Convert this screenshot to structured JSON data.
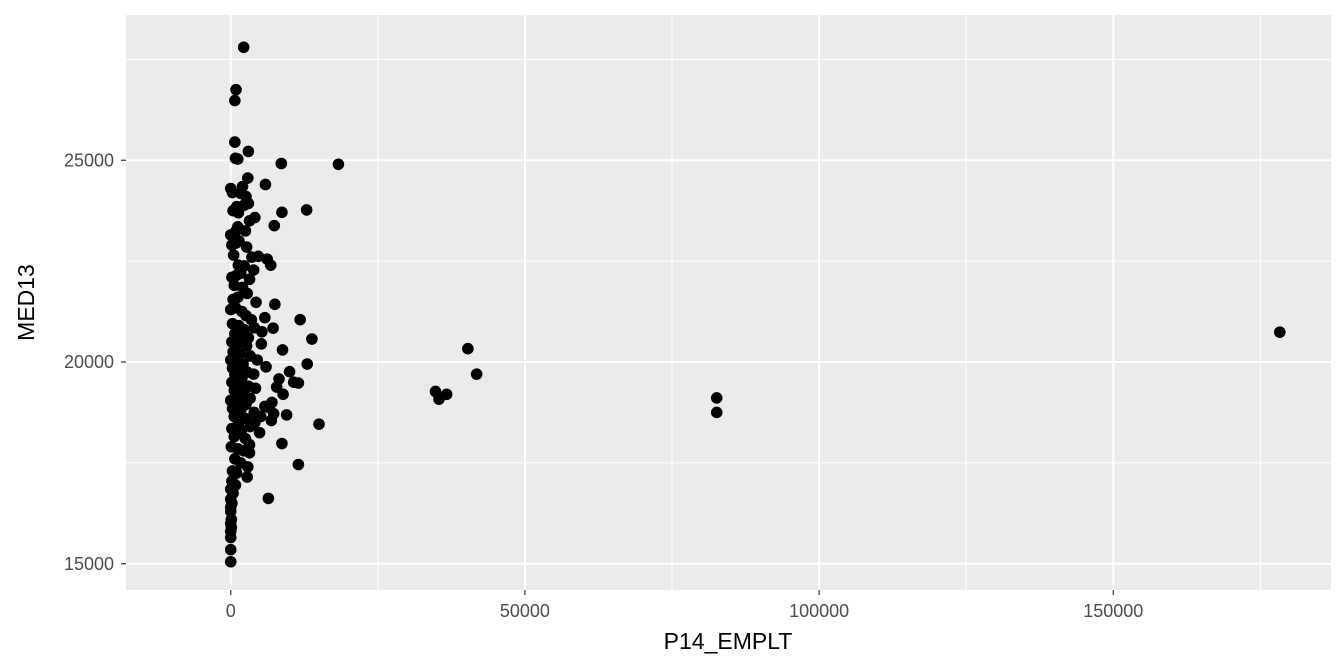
{
  "chart_data": {
    "type": "scatter",
    "title": "",
    "xlabel": "P14_EMPLT",
    "ylabel": "MED13",
    "xlim": [
      -17800,
      187000
    ],
    "ylim": [
      14350,
      28600
    ],
    "x_ticks": [
      0,
      50000,
      100000,
      150000
    ],
    "x_tick_labels": [
      "0",
      "50000",
      "100000",
      "150000"
    ],
    "x_minor_ticks": [
      25000,
      75000,
      125000,
      175000
    ],
    "y_ticks": [
      15000,
      20000,
      25000
    ],
    "y_tick_labels": [
      "15000",
      "20000",
      "25000"
    ],
    "y_minor_ticks": [
      17500,
      22500,
      27500
    ],
    "grid": true,
    "colors": {
      "panel": "#ebebeb",
      "grid": "#ffffff",
      "point": "#000000",
      "tick_label": "#4d4d4d",
      "axis_title": "#000000"
    },
    "series": [
      {
        "points": [
          [
            2200,
            27800
          ],
          [
            900,
            26750
          ],
          [
            700,
            26480
          ],
          [
            700,
            25450
          ],
          [
            800,
            25050
          ],
          [
            1200,
            25030
          ],
          [
            3000,
            25220
          ],
          [
            8600,
            24920
          ],
          [
            18300,
            24900
          ],
          [
            0,
            24300
          ],
          [
            300,
            24200
          ],
          [
            2000,
            24350
          ],
          [
            2600,
            24100
          ],
          [
            1700,
            24180
          ],
          [
            2900,
            24560
          ],
          [
            5900,
            24400
          ],
          [
            1000,
            23850
          ],
          [
            2200,
            23880
          ],
          [
            3000,
            23930
          ],
          [
            400,
            23750
          ],
          [
            1300,
            23700
          ],
          [
            4100,
            23580
          ],
          [
            3200,
            23500
          ],
          [
            8700,
            23710
          ],
          [
            12900,
            23770
          ],
          [
            7400,
            23380
          ],
          [
            1200,
            23350
          ],
          [
            0,
            23150
          ],
          [
            900,
            23250
          ],
          [
            2500,
            23250
          ],
          [
            200,
            22900
          ],
          [
            900,
            22950
          ],
          [
            1400,
            23000
          ],
          [
            2700,
            22850
          ],
          [
            3600,
            22600
          ],
          [
            500,
            22650
          ],
          [
            4700,
            22620
          ],
          [
            6200,
            22550
          ],
          [
            6800,
            22400
          ],
          [
            1300,
            22400
          ],
          [
            2300,
            22380
          ],
          [
            3900,
            22280
          ],
          [
            200,
            22100
          ],
          [
            1000,
            22150
          ],
          [
            1700,
            22200
          ],
          [
            3200,
            22050
          ],
          [
            600,
            21900
          ],
          [
            2000,
            21850
          ],
          [
            2800,
            21700
          ],
          [
            400,
            21550
          ],
          [
            1200,
            21600
          ],
          [
            4300,
            21480
          ],
          [
            7500,
            21430
          ],
          [
            0,
            21300
          ],
          [
            800,
            21350
          ],
          [
            1900,
            21250
          ],
          [
            2600,
            21150
          ],
          [
            3500,
            21050
          ],
          [
            5800,
            21100
          ],
          [
            11800,
            21050
          ],
          [
            300,
            20950
          ],
          [
            1400,
            20900
          ],
          [
            2300,
            20800
          ],
          [
            4000,
            20850
          ],
          [
            7200,
            20840
          ],
          [
            5300,
            20750
          ],
          [
            13800,
            20570
          ],
          [
            700,
            20700
          ],
          [
            1800,
            20650
          ],
          [
            3000,
            20600
          ],
          [
            200,
            20500
          ],
          [
            1100,
            20450
          ],
          [
            2700,
            20400
          ],
          [
            5200,
            20450
          ],
          [
            8800,
            20300
          ],
          [
            400,
            20250
          ],
          [
            1600,
            20200
          ],
          [
            3300,
            20150
          ],
          [
            0,
            20050
          ],
          [
            900,
            20000
          ],
          [
            2100,
            19950
          ],
          [
            13000,
            19950
          ],
          [
            4500,
            20050
          ],
          [
            300,
            19850
          ],
          [
            1500,
            19800
          ],
          [
            2800,
            19750
          ],
          [
            6000,
            19880
          ],
          [
            10000,
            19760
          ],
          [
            700,
            19700
          ],
          [
            3900,
            19700
          ],
          [
            1900,
            19600
          ],
          [
            8200,
            19580
          ],
          [
            10700,
            19500
          ],
          [
            11500,
            19480
          ],
          [
            200,
            19500
          ],
          [
            1200,
            19450
          ],
          [
            3000,
            19400
          ],
          [
            7800,
            19380
          ],
          [
            4200,
            19350
          ],
          [
            600,
            19300
          ],
          [
            2300,
            19250
          ],
          [
            8900,
            19200
          ],
          [
            1400,
            19150
          ],
          [
            3300,
            19100
          ],
          [
            0,
            19050
          ],
          [
            900,
            19000
          ],
          [
            2600,
            18950
          ],
          [
            7000,
            19000
          ],
          [
            5800,
            18900
          ],
          [
            6500,
            18870
          ],
          [
            300,
            18850
          ],
          [
            1700,
            18800
          ],
          [
            4000,
            18750
          ],
          [
            9500,
            18690
          ],
          [
            7300,
            18720
          ],
          [
            5100,
            18650
          ],
          [
            600,
            18650
          ],
          [
            2500,
            18600
          ],
          [
            6900,
            18550
          ],
          [
            4100,
            18500
          ],
          [
            15000,
            18460
          ],
          [
            1300,
            18450
          ],
          [
            3300,
            18400
          ],
          [
            200,
            18350
          ],
          [
            1800,
            18300
          ],
          [
            4900,
            18250
          ],
          [
            600,
            18150
          ],
          [
            2500,
            18100
          ],
          [
            3200,
            17950
          ],
          [
            8700,
            17980
          ],
          [
            100,
            17900
          ],
          [
            1200,
            17850
          ],
          [
            2200,
            17800
          ],
          [
            3200,
            17750
          ],
          [
            700,
            17600
          ],
          [
            1700,
            17500
          ],
          [
            2900,
            17400
          ],
          [
            11500,
            17460
          ],
          [
            300,
            17300
          ],
          [
            1000,
            17250
          ],
          [
            2800,
            17150
          ],
          [
            200,
            17050
          ],
          [
            800,
            16950
          ],
          [
            0,
            16850
          ],
          [
            400,
            16750
          ],
          [
            6400,
            16620
          ],
          [
            0,
            16600
          ],
          [
            200,
            16500
          ],
          [
            0,
            16400
          ],
          [
            0,
            16300
          ],
          [
            100,
            16100
          ],
          [
            0,
            16000
          ],
          [
            100,
            15900
          ],
          [
            0,
            15800
          ],
          [
            0,
            15650
          ],
          [
            0,
            15350
          ],
          [
            0,
            15050
          ],
          [
            34800,
            19270
          ],
          [
            35400,
            19080
          ],
          [
            36700,
            19200
          ],
          [
            40300,
            20330
          ],
          [
            41800,
            19700
          ],
          [
            82600,
            19110
          ],
          [
            82600,
            18750
          ],
          [
            178300,
            20740
          ]
        ]
      }
    ]
  }
}
